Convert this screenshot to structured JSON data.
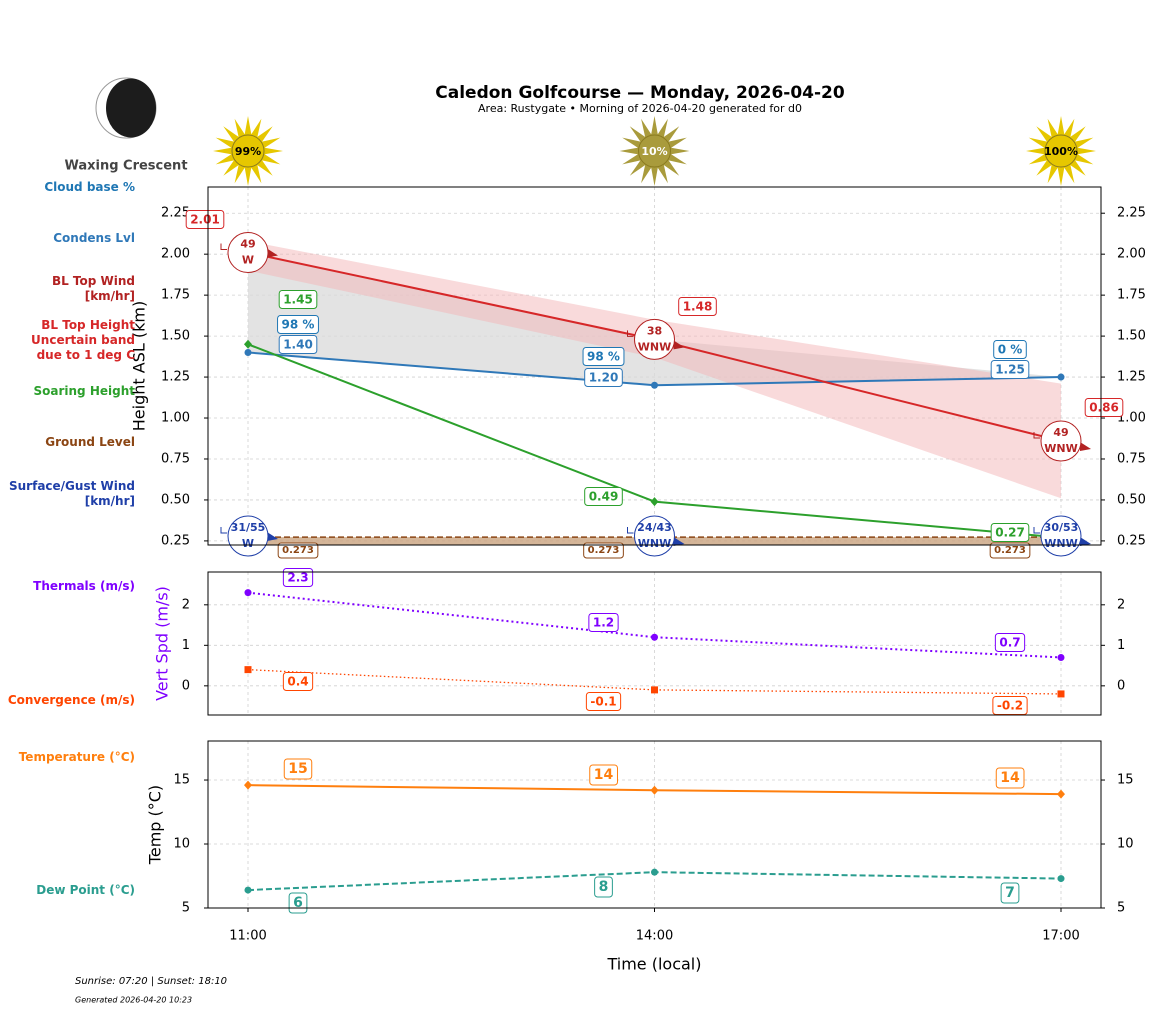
{
  "header": {
    "title": "Caledon Golfcourse — Monday, 2026-04-20",
    "subtitle": "Area: Rustygate • Morning of 2026-04-20 generated for d0",
    "moon_phase": "Waxing Crescent"
  },
  "sun_cover": {
    "values": [
      99,
      10,
      100
    ],
    "value_labels": [
      "99%",
      "10%",
      "100%"
    ],
    "colors": [
      "#e6c700",
      "#a99b3c",
      "#e6c700"
    ]
  },
  "chart_data": [
    {
      "type": "line",
      "ylabel": "Height ASL (km)",
      "ylim": [
        0.225,
        2.41
      ],
      "yticks": [
        0.25,
        {
          "value": 0.5,
          "label": "0.50"
        },
        0.75,
        {
          "value": 1,
          "label": "1.00"
        },
        1.25,
        {
          "value": 1.5,
          "label": "1.50"
        },
        1.75,
        {
          "value": 2,
          "label": "2.00"
        },
        2.25
      ],
      "grid": true,
      "series": [
        {
          "name": "Cloud base %",
          "color": "#1f77b4",
          "style": "label",
          "values": [
            98,
            98,
            0
          ],
          "value_labels": [
            "98 %",
            "98 %",
            "0 %"
          ]
        },
        {
          "name": "Condens Lvl",
          "color": "#2f78b8",
          "style": "line",
          "marker": "circle",
          "fill": "#d9d9d9",
          "values": [
            1.4,
            1.2,
            1.25
          ],
          "value_labels": [
            "1.40",
            "1.20",
            "1.25"
          ]
        },
        {
          "name": "BL Top Wind\n[km/hr]",
          "color": "#b22222",
          "style": "wind",
          "values": [
            49,
            38,
            49
          ],
          "directions": [
            "W",
            "WNW",
            "WNW"
          ]
        },
        {
          "name": "BL Top Height\nUncertain band\ndue to 1 deg C",
          "color": "#d62728",
          "style": "line",
          "marker": "none",
          "values": [
            2.01,
            1.48,
            0.86
          ],
          "band_upper": [
            2.08,
            1.6,
            1.21
          ],
          "band_lower": [
            1.9,
            1.37,
            0.51
          ],
          "band_color": "#f4b6b8"
        },
        {
          "name": "Soaring Height",
          "color": "#2ca02c",
          "style": "line",
          "marker": "diamond",
          "values": [
            1.45,
            0.49,
            0.27
          ]
        },
        {
          "name": "Ground Level",
          "color": "#8b4513",
          "style": "ground",
          "values": [
            0.273,
            0.273,
            0.273
          ]
        },
        {
          "name": "Surface/Gust Wind\n[km/hr]",
          "color": "#1f3fa8",
          "style": "wind",
          "values": [
            31,
            24,
            30
          ],
          "gusts": [
            55,
            43,
            53
          ],
          "value_labels": [
            "31/55",
            "24/43",
            "30/53"
          ],
          "directions": [
            "W",
            "WNW",
            "WNW"
          ]
        }
      ]
    },
    {
      "type": "line",
      "ylabel": "Vert Spd (m/s)",
      "ylabel_color": "#7f00ff",
      "ylim": [
        -0.72,
        2.81
      ],
      "yticks": [
        0,
        1,
        2
      ],
      "grid": true,
      "series": [
        {
          "name": "Thermals (m/s)",
          "color": "#7f00ff",
          "style": "dotted",
          "marker": "circle",
          "values": [
            2.3,
            1.2,
            0.7
          ]
        },
        {
          "name": "Convergence (m/s)",
          "color": "#ff4500",
          "style": "dotted-thin",
          "marker": "square",
          "values": [
            0.4,
            -0.1,
            -0.2
          ]
        }
      ]
    },
    {
      "type": "line",
      "ylabel": "Temp (°C)",
      "xlabel": "Time (local)",
      "categories": [
        "11:00",
        "14:00",
        "17:00"
      ],
      "ylim": [
        5,
        18.05
      ],
      "yticks": [
        5,
        10,
        15
      ],
      "grid": true,
      "series": [
        {
          "name": "Temperature (°C)",
          "color": "#ff7f0e",
          "style": "line",
          "marker": "diamond",
          "values": [
            14.6,
            14.2,
            13.9
          ],
          "value_labels": [
            "15",
            "14",
            "14"
          ]
        },
        {
          "name": "Dew Point (°C)",
          "color": "#2a9d8f",
          "style": "dashed",
          "marker": "circle",
          "values": [
            6.4,
            7.8,
            7.3
          ],
          "value_labels": [
            "6",
            "8",
            "7"
          ]
        }
      ]
    }
  ],
  "footer": {
    "sun_times": "Sunrise: 07:20 | Sunset: 18:10",
    "generated": "Generated 2026-04-20 10:23"
  }
}
